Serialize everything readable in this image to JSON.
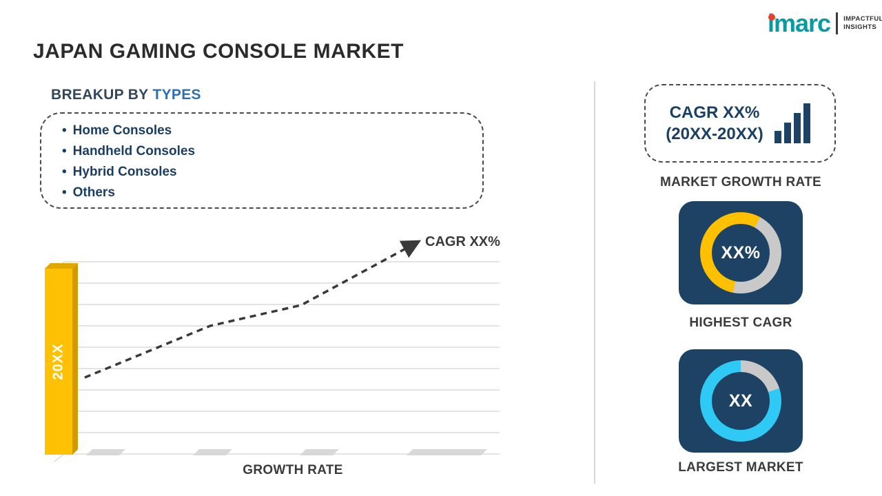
{
  "title": "JAPAN GAMING CONSOLE MARKET",
  "logo": {
    "brand": "imarc",
    "tagline_line1": "IMPACTFUL",
    "tagline_line2": "INSIGHTS"
  },
  "breakup": {
    "heading_prefix": "BREAKUP BY",
    "heading_highlight": "TYPES",
    "bullet": "•",
    "items": [
      "Home Consoles",
      "Handheld Consoles",
      "Hybrid Consoles",
      "Others"
    ]
  },
  "chart_data": {
    "type": "bar",
    "categories": [
      "",
      "",
      "20XX",
      "20XX"
    ],
    "values": [
      37,
      62,
      75,
      100
    ],
    "xlabel": "GROWTH RATE",
    "ylim": [
      0,
      110
    ],
    "grid": true,
    "bar_color": "#ffc000",
    "trend": {
      "style": "dashed-ascending-arrow",
      "label": "CAGR XX%"
    }
  },
  "right_panel": {
    "growth_card": {
      "line1": "CAGR XX%",
      "line2": "(20XX-20XX)",
      "caption": "MARKET GROWTH RATE"
    },
    "highest_cagr": {
      "value": "XX%",
      "caption": "HIGHEST CAGR"
    },
    "largest_market": {
      "value": "XX",
      "caption": "LARGEST MARKET"
    }
  },
  "colors": {
    "navy": "#1d4263",
    "gold": "#ffc000",
    "cyan": "#2ec9f5",
    "ring_gray": "#c9c9c9",
    "logo_teal": "#0a9aa3",
    "logo_red": "#e8402a",
    "heading_blue": "#2d6fb0"
  }
}
